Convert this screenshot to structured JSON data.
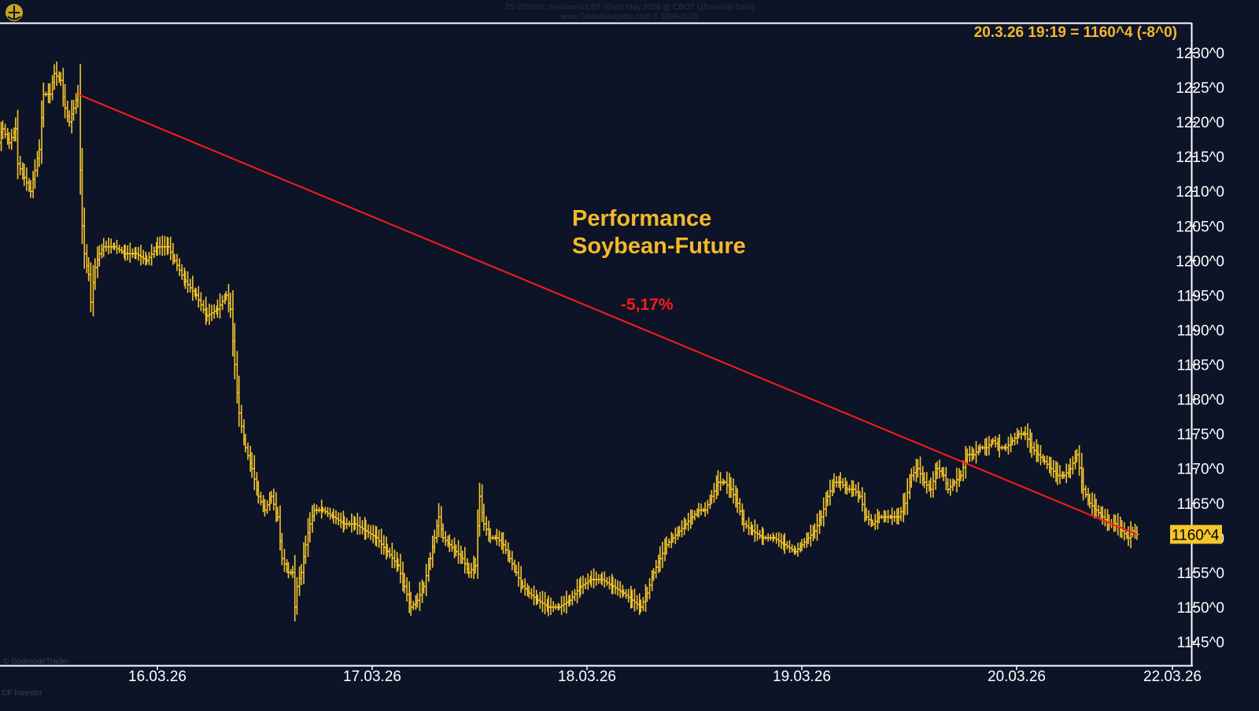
{
  "header": {
    "line1": "ZS-202605: Soybeans CBT (Elec) May 2026 @ CBOT (15 minute bars)",
    "line2": "www.TradeNavigator.com © 1999-2025"
  },
  "readout": "20.3.26 19:19 = 1160^4 (-8^0)",
  "annotation": {
    "line1": "Performance",
    "line2": "Soybean-Future"
  },
  "change_label": "-5,17%",
  "last_price_label": "1160^4",
  "watermark_bottom_left": "© GodmodeTrader",
  "footer_left": "CF Investor",
  "colors": {
    "background": "#0d1428",
    "bars": "#f5c52a",
    "trendline": "#ff1a1a",
    "annotation": "#f5b82a",
    "axis": "#ffffff"
  },
  "chart_data": {
    "type": "line",
    "title": "",
    "xlabel": "",
    "ylabel": "",
    "ylim": [
      1143,
      1233
    ],
    "y_ticks": [
      1230,
      1225,
      1220,
      1215,
      1210,
      1205,
      1200,
      1195,
      1190,
      1185,
      1180,
      1175,
      1170,
      1165,
      1160,
      1155,
      1150,
      1145
    ],
    "y_tick_labels": [
      "1230^0",
      "1225^0",
      "1220^0",
      "1215^0",
      "1210^0",
      "1205^0",
      "1200^0",
      "1195^0",
      "1190^0",
      "1185^0",
      "1180^0",
      "1175^0",
      "1170^0",
      "1165^0",
      "1160^0",
      "1155^0",
      "1150^0",
      "1145^0"
    ],
    "x_ticks": [
      "16.03.26",
      "17.03.26",
      "18.03.26",
      "19.03.26",
      "20.03.26",
      "22.03.26"
    ],
    "x_tick_positions_day": [
      0.75,
      1.75,
      2.75,
      3.75,
      4.75,
      5.6
    ],
    "xlim_day": [
      0,
      5.5
    ],
    "grid": false,
    "series": [
      {
        "name": "",
        "style": "ohlc-bars",
        "points": [
          [
            0.0,
            1217
          ],
          [
            0.03,
            1219
          ],
          [
            0.06,
            1217
          ],
          [
            0.09,
            1219
          ],
          [
            0.1,
            1214
          ],
          [
            0.13,
            1212
          ],
          [
            0.16,
            1210
          ],
          [
            0.18,
            1213
          ],
          [
            0.2,
            1216
          ],
          [
            0.22,
            1224
          ],
          [
            0.25,
            1224
          ],
          [
            0.27,
            1227
          ],
          [
            0.3,
            1226
          ],
          [
            0.32,
            1222
          ],
          [
            0.34,
            1220
          ],
          [
            0.36,
            1222
          ],
          [
            0.38,
            1224
          ],
          [
            0.4,
            1205
          ],
          [
            0.41,
            1201
          ],
          [
            0.43,
            1198
          ],
          [
            0.44,
            1194
          ],
          [
            0.46,
            1199
          ],
          [
            0.48,
            1201
          ],
          [
            0.5,
            1202
          ],
          [
            0.55,
            1202
          ],
          [
            0.6,
            1201
          ],
          [
            0.65,
            1201
          ],
          [
            0.7,
            1200
          ],
          [
            0.75,
            1202
          ],
          [
            0.8,
            1202
          ],
          [
            0.83,
            1200
          ],
          [
            0.88,
            1197
          ],
          [
            0.93,
            1195
          ],
          [
            0.98,
            1192
          ],
          [
            1.03,
            1193
          ],
          [
            1.07,
            1195
          ],
          [
            1.09,
            1193
          ],
          [
            1.11,
            1185
          ],
          [
            1.13,
            1178
          ],
          [
            1.16,
            1173
          ],
          [
            1.19,
            1170
          ],
          [
            1.22,
            1166
          ],
          [
            1.25,
            1164
          ],
          [
            1.28,
            1166
          ],
          [
            1.31,
            1163
          ],
          [
            1.33,
            1157
          ],
          [
            1.36,
            1155
          ],
          [
            1.38,
            1155
          ],
          [
            1.39,
            1150
          ],
          [
            1.4,
            1153
          ],
          [
            1.42,
            1155
          ],
          [
            1.44,
            1159
          ],
          [
            1.46,
            1162
          ],
          [
            1.48,
            1164
          ],
          [
            1.52,
            1164
          ],
          [
            1.57,
            1163
          ],
          [
            1.62,
            1162
          ],
          [
            1.67,
            1162
          ],
          [
            1.72,
            1161
          ],
          [
            1.77,
            1160
          ],
          [
            1.82,
            1158
          ],
          [
            1.87,
            1156
          ],
          [
            1.9,
            1153
          ],
          [
            1.93,
            1150
          ],
          [
            1.96,
            1151
          ],
          [
            1.99,
            1153
          ],
          [
            2.02,
            1157
          ],
          [
            2.04,
            1160
          ],
          [
            2.06,
            1163
          ],
          [
            2.08,
            1160
          ],
          [
            2.11,
            1159
          ],
          [
            2.14,
            1158
          ],
          [
            2.17,
            1157
          ],
          [
            2.2,
            1155
          ],
          [
            2.23,
            1156
          ],
          [
            2.25,
            1166
          ],
          [
            2.27,
            1162
          ],
          [
            2.3,
            1160
          ],
          [
            2.33,
            1160
          ],
          [
            2.36,
            1159
          ],
          [
            2.39,
            1157
          ],
          [
            2.42,
            1155
          ],
          [
            2.45,
            1153
          ],
          [
            2.48,
            1152
          ],
          [
            2.52,
            1151
          ],
          [
            2.57,
            1150
          ],
          [
            2.62,
            1150
          ],
          [
            2.67,
            1151
          ],
          [
            2.72,
            1153
          ],
          [
            2.77,
            1154
          ],
          [
            2.82,
            1154
          ],
          [
            2.87,
            1153
          ],
          [
            2.92,
            1152
          ],
          [
            2.96,
            1151
          ],
          [
            3.0,
            1150
          ],
          [
            3.03,
            1152
          ],
          [
            3.06,
            1155
          ],
          [
            3.09,
            1157
          ],
          [
            3.12,
            1159
          ],
          [
            3.15,
            1160
          ],
          [
            3.18,
            1161
          ],
          [
            3.21,
            1162
          ],
          [
            3.24,
            1163
          ],
          [
            3.27,
            1164
          ],
          [
            3.3,
            1164
          ],
          [
            3.33,
            1166
          ],
          [
            3.36,
            1168
          ],
          [
            3.39,
            1168
          ],
          [
            3.42,
            1167
          ],
          [
            3.45,
            1165
          ],
          [
            3.48,
            1162
          ],
          [
            3.52,
            1161
          ],
          [
            3.57,
            1160
          ],
          [
            3.62,
            1160
          ],
          [
            3.67,
            1159
          ],
          [
            3.72,
            1158
          ],
          [
            3.75,
            1159
          ],
          [
            3.78,
            1160
          ],
          [
            3.81,
            1161
          ],
          [
            3.84,
            1163
          ],
          [
            3.87,
            1166
          ],
          [
            3.9,
            1168
          ],
          [
            3.93,
            1168
          ],
          [
            3.96,
            1167
          ],
          [
            3.99,
            1167
          ],
          [
            4.02,
            1166
          ],
          [
            4.05,
            1163
          ],
          [
            4.08,
            1162
          ],
          [
            4.11,
            1163
          ],
          [
            4.14,
            1163
          ],
          [
            4.17,
            1163
          ],
          [
            4.2,
            1163
          ],
          [
            4.23,
            1165
          ],
          [
            4.26,
            1169
          ],
          [
            4.29,
            1170
          ],
          [
            4.32,
            1168
          ],
          [
            4.35,
            1167
          ],
          [
            4.38,
            1170
          ],
          [
            4.41,
            1169
          ],
          [
            4.43,
            1167
          ],
          [
            4.46,
            1168
          ],
          [
            4.49,
            1169
          ],
          [
            4.52,
            1172
          ],
          [
            4.55,
            1172
          ],
          [
            4.58,
            1173
          ],
          [
            4.61,
            1173
          ],
          [
            4.64,
            1174
          ],
          [
            4.67,
            1173
          ],
          [
            4.7,
            1173
          ],
          [
            4.73,
            1174
          ],
          [
            4.76,
            1175
          ],
          [
            4.79,
            1175
          ],
          [
            4.82,
            1173
          ],
          [
            4.85,
            1172
          ],
          [
            4.88,
            1171
          ],
          [
            4.91,
            1170
          ],
          [
            4.94,
            1169
          ],
          [
            4.97,
            1169
          ],
          [
            5.0,
            1170
          ],
          [
            5.03,
            1172
          ],
          [
            5.06,
            1167
          ],
          [
            5.09,
            1165
          ],
          [
            5.12,
            1164
          ],
          [
            5.15,
            1163
          ],
          [
            5.18,
            1162
          ],
          [
            5.21,
            1162
          ],
          [
            5.24,
            1161
          ],
          [
            5.27,
            1160
          ],
          [
            5.29,
            1161
          ],
          [
            5.31,
            1160.5
          ]
        ]
      }
    ],
    "trendline": {
      "from": [
        0.38,
        1224
      ],
      "to": [
        5.31,
        1160.5
      ],
      "label": "-5,17%"
    },
    "last_price": 1160.5
  }
}
